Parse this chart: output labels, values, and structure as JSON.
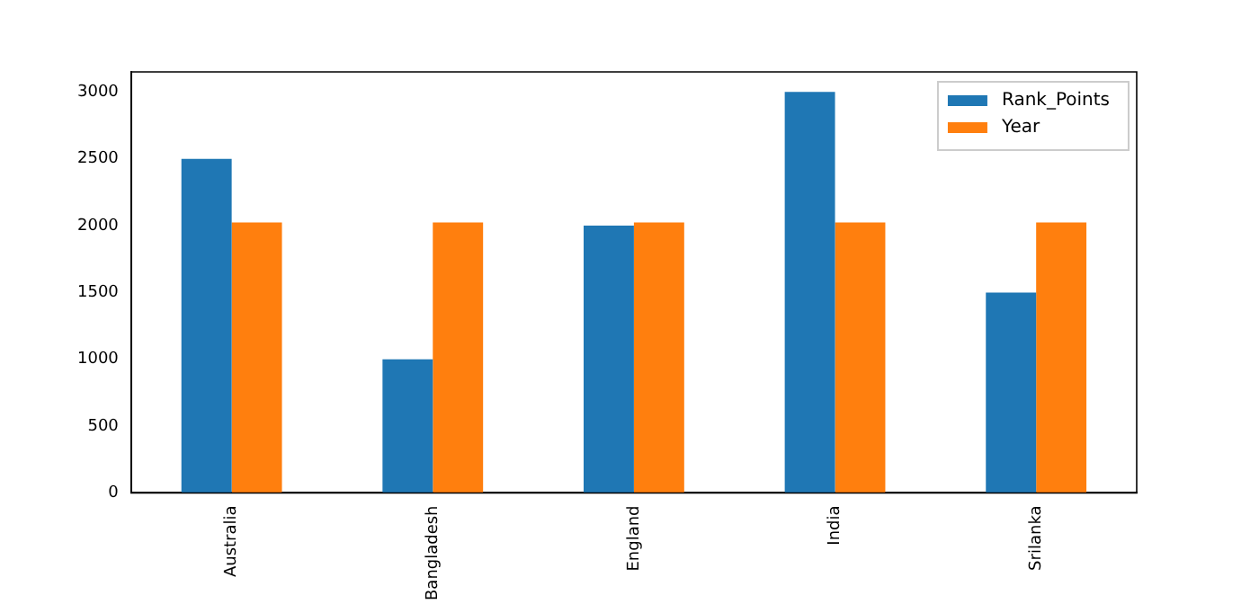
{
  "chart_data": {
    "type": "bar",
    "categories": [
      "Australia",
      "Bangladesh",
      "England",
      "India",
      "Srilanka"
    ],
    "series": [
      {
        "name": "Rank_Points",
        "color": "#1f77b4",
        "values": [
          2500,
          1000,
          2000,
          3000,
          1500
        ]
      },
      {
        "name": "Year",
        "color": "#ff7f0e",
        "values": [
          2023,
          2023,
          2023,
          2023,
          2023
        ]
      }
    ],
    "ylim": [
      0,
      3150
    ],
    "yticks": [
      0,
      500,
      1000,
      1500,
      2000,
      2500,
      3000
    ],
    "grid": false,
    "legend": "top right"
  }
}
